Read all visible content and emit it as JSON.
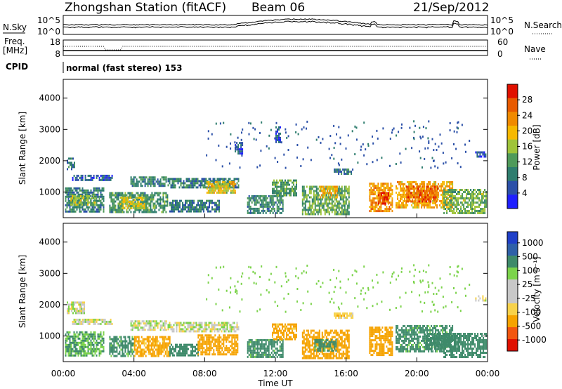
{
  "header": {
    "station": "Zhongshan Station (fitACF)",
    "beam": "Beam 06",
    "date": "21/Sep/2012"
  },
  "noise_panel": {
    "left_label": "N.Sky",
    "left_ticks": [
      "10^5",
      "10^0"
    ],
    "right_label": "N.Search",
    "right_ticks": [
      "10^5",
      "10^0"
    ]
  },
  "freq_panel": {
    "left_label_1": "Freq.",
    "left_label_2": "[MHz]",
    "left_ticks": [
      "18",
      "8"
    ],
    "right_label": "Nave",
    "right_ticks": [
      "60",
      "0"
    ]
  },
  "cpid": {
    "label": "CPID",
    "value": "normal (fast stereo) 153"
  },
  "colors": {
    "power_scale": [
      "#1f1fff",
      "#2b50a8",
      "#2e7d6e",
      "#4f9a5a",
      "#9fc43a",
      "#f6b800",
      "#f08a00",
      "#e85a00",
      "#e01000"
    ],
    "velocity_scale": [
      "#e01000",
      "#f2560f",
      "#f6a300",
      "#f7d24a",
      "#c8c8c8",
      "#c8c8c8",
      "#7bd34a",
      "#3e8a6a",
      "#2e60a8",
      "#1f3fc8"
    ]
  },
  "chart_data": [
    {
      "type": "heatmap",
      "panel": "power",
      "ylabel": "Slant Range [km]",
      "xlabel": "",
      "ylim": [
        180,
        4600
      ],
      "y_ticks": [
        1000,
        2000,
        3000,
        4000
      ],
      "colorbar": {
        "title": "Power [dB]",
        "min": 0,
        "max": 32,
        "ticks": [
          4,
          8,
          12,
          16,
          20,
          24,
          28
        ]
      },
      "patches": [
        {
          "t0": 0.1,
          "t1": 2.3,
          "r0": 400,
          "r1": 1150,
          "v": 9
        },
        {
          "t0": 0.4,
          "t1": 1.8,
          "r0": 600,
          "r1": 900,
          "v": 15
        },
        {
          "t0": 0.2,
          "t1": 0.6,
          "r0": 1700,
          "r1": 2100,
          "v": 8
        },
        {
          "t0": 0.5,
          "t1": 2.8,
          "r0": 1350,
          "r1": 1550,
          "v": 6
        },
        {
          "t0": 2.6,
          "t1": 5.9,
          "r0": 350,
          "r1": 1000,
          "v": 11
        },
        {
          "t0": 3.2,
          "t1": 4.6,
          "r0": 500,
          "r1": 850,
          "v": 17
        },
        {
          "t0": 3.8,
          "t1": 5.8,
          "r0": 1200,
          "r1": 1500,
          "v": 10
        },
        {
          "t0": 5.9,
          "t1": 9.9,
          "r0": 1150,
          "r1": 1450,
          "v": 9
        },
        {
          "t0": 8.1,
          "t1": 9.7,
          "r0": 1000,
          "r1": 1350,
          "v": 18
        },
        {
          "t0": 6.0,
          "t1": 8.8,
          "r0": 350,
          "r1": 750,
          "v": 9
        },
        {
          "t0": 10.4,
          "t1": 12.4,
          "r0": 300,
          "r1": 900,
          "v": 10
        },
        {
          "t0": 11.8,
          "t1": 13.2,
          "r0": 900,
          "r1": 1400,
          "v": 12
        },
        {
          "t0": 13.5,
          "t1": 16.2,
          "r0": 300,
          "r1": 1200,
          "v": 13
        },
        {
          "t0": 14.5,
          "t1": 15.5,
          "r0": 800,
          "r1": 1200,
          "v": 20
        },
        {
          "t0": 15.3,
          "t1": 16.4,
          "r0": 1550,
          "r1": 1750,
          "v": 8
        },
        {
          "t0": 17.3,
          "t1": 18.6,
          "r0": 400,
          "r1": 1300,
          "v": 22
        },
        {
          "t0": 17.8,
          "t1": 18.4,
          "r0": 600,
          "r1": 1000,
          "v": 28
        },
        {
          "t0": 18.8,
          "t1": 22.0,
          "r0": 500,
          "r1": 1350,
          "v": 21
        },
        {
          "t0": 19.4,
          "t1": 21.2,
          "r0": 700,
          "r1": 1200,
          "v": 26
        },
        {
          "t0": 21.5,
          "t1": 23.9,
          "r0": 350,
          "r1": 1100,
          "v": 14
        },
        {
          "t0": 23.3,
          "t1": 23.9,
          "r0": 2100,
          "r1": 2300,
          "v": 6
        },
        {
          "t0": 9.7,
          "t1": 10.1,
          "r0": 2200,
          "r1": 2600,
          "v": 6
        },
        {
          "t0": 12.0,
          "t1": 12.3,
          "r0": 2600,
          "r1": 3100,
          "v": 5
        }
      ]
    },
    {
      "type": "heatmap",
      "panel": "velocity",
      "ylabel": "Slant Range [km]",
      "xlabel": "Time UT",
      "ylim": [
        180,
        4600
      ],
      "y_ticks": [
        1000,
        2000,
        3000,
        4000
      ],
      "x_ticks": [
        "00:00",
        "04:00",
        "08:00",
        "12:00",
        "16:00",
        "20:00",
        "00:00"
      ],
      "colorbar": {
        "title": "Velocity [m s⁻¹]",
        "ticks": [
          "1000",
          "500",
          "100",
          "25",
          "-25",
          "-100",
          "-500",
          "-1000"
        ]
      },
      "patches": [
        {
          "t0": 0.1,
          "t1": 2.3,
          "r0": 400,
          "r1": 1150,
          "v": 100
        },
        {
          "t0": 0.2,
          "t1": 1.2,
          "r0": 1700,
          "r1": 2100,
          "v": 0
        },
        {
          "t0": 0.5,
          "t1": 2.8,
          "r0": 1350,
          "r1": 1550,
          "v": 0
        },
        {
          "t0": 2.6,
          "t1": 4.0,
          "r0": 350,
          "r1": 1000,
          "v": 150
        },
        {
          "t0": 4.0,
          "t1": 6.0,
          "r0": 350,
          "r1": 1000,
          "v": -150
        },
        {
          "t0": 3.8,
          "t1": 5.8,
          "r0": 1200,
          "r1": 1500,
          "v": 0
        },
        {
          "t0": 5.9,
          "t1": 9.9,
          "r0": 1150,
          "r1": 1450,
          "v": 0
        },
        {
          "t0": 6.0,
          "t1": 7.6,
          "r0": 350,
          "r1": 750,
          "v": 300
        },
        {
          "t0": 7.6,
          "t1": 9.9,
          "r0": 400,
          "r1": 1050,
          "v": -200
        },
        {
          "t0": 10.4,
          "t1": 12.4,
          "r0": 300,
          "r1": 900,
          "v": 150
        },
        {
          "t0": 11.8,
          "t1": 13.2,
          "r0": 900,
          "r1": 1400,
          "v": -150
        },
        {
          "t0": 13.5,
          "t1": 16.2,
          "r0": 300,
          "r1": 1200,
          "v": -300
        },
        {
          "t0": 14.2,
          "t1": 15.4,
          "r0": 500,
          "r1": 900,
          "v": 150
        },
        {
          "t0": 15.3,
          "t1": 16.4,
          "r0": 1550,
          "r1": 1750,
          "v": -60
        },
        {
          "t0": 17.3,
          "t1": 18.6,
          "r0": 400,
          "r1": 1300,
          "v": -400
        },
        {
          "t0": 18.8,
          "t1": 22.0,
          "r0": 500,
          "r1": 1350,
          "v": 150
        },
        {
          "t0": 20.5,
          "t1": 22.4,
          "r0": 600,
          "r1": 1100,
          "v": 400
        },
        {
          "t0": 21.5,
          "t1": 23.9,
          "r0": 350,
          "r1": 1100,
          "v": 300
        },
        {
          "t0": 23.3,
          "t1": 23.9,
          "r0": 2100,
          "r1": 2300,
          "v": 0
        }
      ]
    }
  ]
}
